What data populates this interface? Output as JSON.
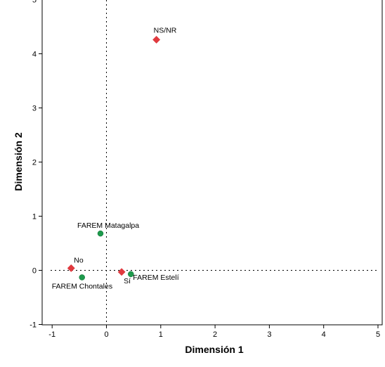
{
  "chart_data": {
    "type": "scatter",
    "title": "",
    "xlabel": "Dimensión 1",
    "ylabel": "Dimensión 2",
    "xlim": [
      -1.3,
      5.0
    ],
    "ylim": [
      -1.0,
      5.0
    ],
    "xticks": [
      "-1",
      "0",
      "1",
      "2",
      "3",
      "4",
      "5"
    ],
    "yticks": [
      "-1",
      "0",
      "1",
      "2",
      "3",
      "4",
      "5"
    ],
    "grid": false,
    "reference_lines": {
      "x": 0,
      "y": 0,
      "style": "dotted"
    },
    "series": [
      {
        "color": "#e0393e",
        "marker": "diamond",
        "points": [
          {
            "label": "NS/NR",
            "x": 0.92,
            "y": 4.26
          },
          {
            "label": "No",
            "x": -0.65,
            "y": 0.04
          },
          {
            "label": "Sí",
            "x": 0.28,
            "y": -0.03
          }
        ]
      },
      {
        "color": "#1e9a4c",
        "marker": "circle",
        "points": [
          {
            "label": "FAREM Matagalpa",
            "x": -0.11,
            "y": 0.68
          },
          {
            "label": "FAREM Chontales",
            "x": -0.45,
            "y": -0.13
          },
          {
            "label": "FAREM Estelí",
            "x": 0.45,
            "y": -0.07
          }
        ]
      }
    ]
  }
}
